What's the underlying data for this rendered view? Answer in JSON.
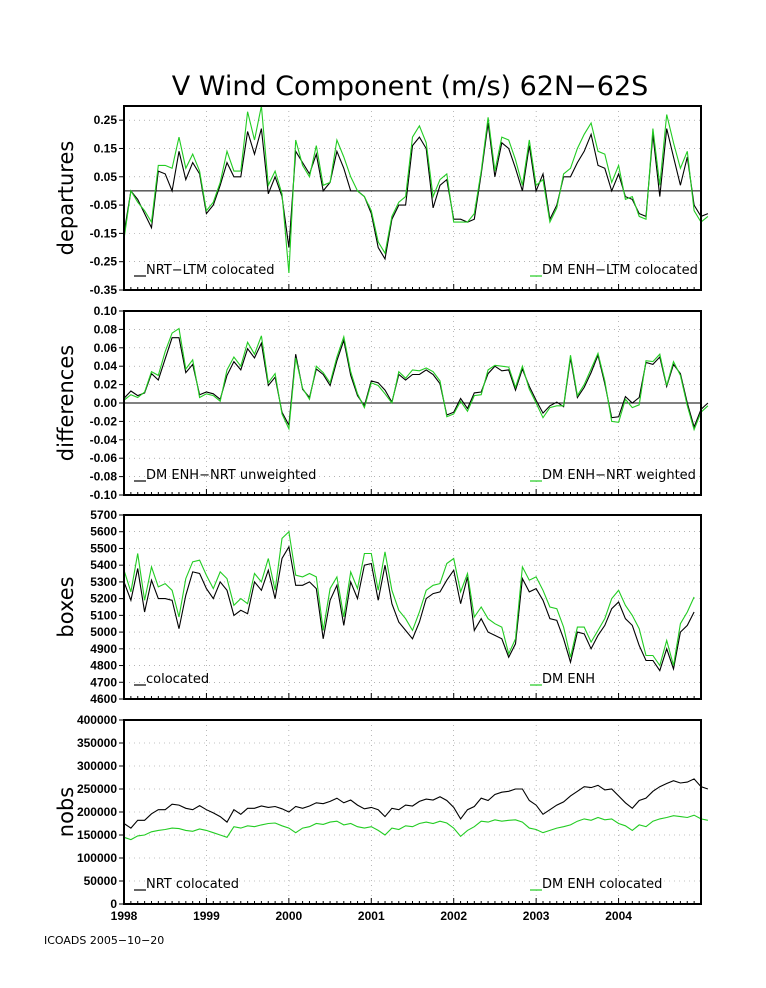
{
  "title": "V Wind Component (m/s) 62N−62S",
  "footer": "ICOADS 2005−10−20",
  "colors": {
    "black_series": "#000000",
    "green_series": "#22cc22",
    "grid": "#888888"
  },
  "chart_data": [
    {
      "type": "line",
      "ylabel": "departures",
      "ylim": [
        -0.35,
        0.3
      ],
      "yticks": [
        "0.25",
        "0.15",
        "0.05",
        "-0.05",
        "-0.15",
        "-0.25",
        "-0.35"
      ],
      "zero_line": true,
      "x_start": "1998-01",
      "x_end": "2004-11",
      "series": [
        {
          "name": "NRT−LTM colocated",
          "color": "#000000",
          "legend_pos": "bottom-left",
          "values": [
            -0.15,
            0.0,
            -0.03,
            -0.08,
            -0.13,
            0.07,
            0.06,
            0.0,
            0.14,
            0.04,
            0.1,
            0.06,
            -0.08,
            -0.05,
            0.02,
            0.1,
            0.05,
            0.05,
            0.21,
            0.13,
            0.22,
            -0.01,
            0.05,
            -0.02,
            -0.2,
            0.14,
            0.1,
            0.06,
            0.13,
            0.0,
            0.03,
            0.14,
            0.08,
            0.0,
            0.0,
            -0.02,
            -0.08,
            -0.2,
            -0.24,
            -0.1,
            -0.05,
            -0.05,
            0.16,
            0.19,
            0.15,
            -0.06,
            0.02,
            0.04,
            -0.1,
            -0.1,
            -0.11,
            -0.1,
            0.06,
            0.24,
            0.05,
            0.17,
            0.15,
            0.08,
            0.0,
            0.16,
            0.0,
            0.06,
            -0.1,
            -0.05,
            0.05,
            0.05,
            0.1,
            0.14,
            0.2,
            0.09,
            0.08,
            0.0,
            0.06,
            -0.02,
            -0.03,
            -0.08,
            -0.09,
            0.2,
            -0.02,
            0.22,
            0.12,
            0.02,
            0.12,
            -0.05,
            -0.09,
            -0.08
          ]
        },
        {
          "name": "DM ENH−LTM colocated",
          "color": "#22cc22",
          "legend_pos": "bottom-right",
          "values": [
            -0.17,
            0.0,
            -0.04,
            -0.07,
            -0.11,
            0.09,
            0.09,
            0.08,
            0.19,
            0.08,
            0.13,
            0.07,
            -0.07,
            -0.04,
            0.03,
            0.14,
            0.07,
            0.07,
            0.28,
            0.18,
            0.3,
            0.02,
            0.07,
            -0.01,
            -0.29,
            0.18,
            0.09,
            0.05,
            0.16,
            0.02,
            0.03,
            0.18,
            0.12,
            0.05,
            0.0,
            -0.02,
            -0.07,
            -0.18,
            -0.22,
            -0.09,
            -0.04,
            -0.02,
            0.19,
            0.23,
            0.17,
            -0.02,
            0.04,
            0.06,
            -0.11,
            -0.11,
            -0.11,
            -0.08,
            0.07,
            0.26,
            0.07,
            0.19,
            0.18,
            0.11,
            0.02,
            0.18,
            0.02,
            0.04,
            -0.11,
            -0.06,
            0.06,
            0.08,
            0.15,
            0.2,
            0.24,
            0.14,
            0.13,
            0.03,
            0.09,
            -0.03,
            -0.02,
            -0.09,
            -0.1,
            0.22,
            0.02,
            0.27,
            0.17,
            0.08,
            0.14,
            -0.07,
            -0.11,
            -0.09
          ]
        }
      ]
    },
    {
      "type": "line",
      "ylabel": "differences",
      "ylim": [
        -0.1,
        0.1
      ],
      "yticks": [
        "0.10",
        "0.08",
        "0.06",
        "0.04",
        "0.02",
        "0.00",
        "-0.02",
        "-0.04",
        "-0.06",
        "-0.08",
        "-0.10"
      ],
      "zero_line": true,
      "x_start": "1998-01",
      "x_end": "2004-11",
      "series": [
        {
          "name": "DM ENH−NRT unweighted",
          "color": "#000000",
          "legend_pos": "bottom-left",
          "values": [
            0.005,
            0.013,
            0.008,
            0.011,
            0.032,
            0.025,
            0.048,
            0.071,
            0.071,
            0.033,
            0.042,
            0.009,
            0.012,
            0.01,
            0.004,
            0.03,
            0.045,
            0.036,
            0.059,
            0.049,
            0.065,
            0.019,
            0.028,
            -0.01,
            -0.024,
            0.053,
            0.015,
            0.006,
            0.037,
            0.031,
            0.019,
            0.046,
            0.068,
            0.03,
            0.008,
            -0.003,
            0.024,
            0.022,
            0.014,
            0.001,
            0.031,
            0.025,
            0.031,
            0.031,
            0.036,
            0.031,
            0.021,
            -0.013,
            -0.01,
            0.005,
            -0.006,
            0.011,
            0.012,
            0.032,
            0.04,
            0.035,
            0.036,
            0.014,
            0.037,
            0.018,
            0.003,
            -0.011,
            -0.003,
            0.001,
            -0.004,
            0.049,
            0.006,
            0.017,
            0.033,
            0.052,
            0.021,
            -0.016,
            -0.015,
            0.007,
            0.0,
            0.006,
            0.044,
            0.042,
            0.05,
            0.018,
            0.042,
            0.032,
            0.0,
            -0.026,
            -0.007,
            0.0
          ]
        },
        {
          "name": "DM ENH−NRT weighted",
          "color": "#22cc22",
          "legend_pos": "bottom-right",
          "values": [
            0.003,
            0.009,
            0.006,
            0.012,
            0.034,
            0.03,
            0.056,
            0.076,
            0.081,
            0.037,
            0.047,
            0.006,
            0.01,
            0.008,
            0.002,
            0.036,
            0.05,
            0.04,
            0.066,
            0.053,
            0.073,
            0.022,
            0.032,
            -0.012,
            -0.028,
            0.049,
            0.016,
            0.004,
            0.04,
            0.033,
            0.022,
            0.05,
            0.072,
            0.034,
            0.01,
            -0.005,
            0.022,
            0.019,
            0.01,
            0.0,
            0.034,
            0.027,
            0.036,
            0.035,
            0.038,
            0.034,
            0.024,
            -0.015,
            -0.012,
            0.002,
            -0.009,
            0.008,
            0.009,
            0.036,
            0.041,
            0.04,
            0.039,
            0.017,
            0.04,
            0.015,
            0.0,
            -0.016,
            -0.005,
            -0.003,
            -0.003,
            0.052,
            0.008,
            0.02,
            0.037,
            0.054,
            0.024,
            -0.02,
            -0.021,
            0.004,
            -0.005,
            -0.002,
            0.046,
            0.045,
            0.053,
            0.019,
            0.045,
            0.03,
            -0.003,
            -0.029,
            -0.01,
            -0.003
          ]
        }
      ]
    },
    {
      "type": "line",
      "ylabel": "boxes",
      "ylim": [
        4600,
        5700
      ],
      "yticks": [
        "5700",
        "5600",
        "5500",
        "5400",
        "5300",
        "5200",
        "5100",
        "5000",
        "4900",
        "4800",
        "4700",
        "4600"
      ],
      "zero_line": false,
      "x_start": "1998-01",
      "x_end": "2004-11",
      "series": [
        {
          "name": "colocated",
          "color": "#000000",
          "legend_pos": "bottom-left",
          "values": [
            5300,
            5190,
            5380,
            5120,
            5310,
            5200,
            5200,
            5190,
            5020,
            5220,
            5360,
            5350,
            5260,
            5200,
            5300,
            5250,
            5100,
            5130,
            5110,
            5300,
            5250,
            5370,
            5200,
            5440,
            5510,
            5280,
            5280,
            5300,
            5260,
            4960,
            5190,
            5280,
            5040,
            5300,
            5200,
            5400,
            5410,
            5190,
            5400,
            5170,
            5060,
            5010,
            4960,
            5060,
            5200,
            5230,
            5240,
            5310,
            5370,
            5170,
            5330,
            5010,
            5080,
            5000,
            4980,
            4960,
            4850,
            4930,
            5320,
            5240,
            5260,
            5190,
            5080,
            5070,
            4960,
            4820,
            5000,
            4990,
            4900,
            4980,
            5040,
            5140,
            5180,
            5080,
            5040,
            4920,
            4830,
            4830,
            4770,
            4900,
            4780,
            5000,
            5040,
            5120
          ]
        },
        {
          "name": "DM ENH",
          "color": "#22cc22",
          "legend_pos": "bottom-right",
          "values": [
            5370,
            5240,
            5470,
            5190,
            5390,
            5270,
            5290,
            5250,
            5090,
            5320,
            5420,
            5430,
            5340,
            5260,
            5360,
            5320,
            5160,
            5200,
            5170,
            5350,
            5300,
            5440,
            5250,
            5560,
            5600,
            5340,
            5330,
            5350,
            5330,
            5010,
            5260,
            5330,
            5090,
            5360,
            5260,
            5470,
            5470,
            5250,
            5480,
            5250,
            5130,
            5080,
            5010,
            5120,
            5250,
            5280,
            5290,
            5410,
            5440,
            5240,
            5350,
            5090,
            5150,
            5080,
            5050,
            5030,
            4870,
            4960,
            5390,
            5310,
            5330,
            5250,
            5150,
            5140,
            5030,
            4850,
            5030,
            5030,
            4940,
            5010,
            5080,
            5200,
            5250,
            5160,
            5100,
            5020,
            4860,
            4860,
            4800,
            4950,
            4800,
            5050,
            5120,
            5210
          ]
        }
      ]
    },
    {
      "type": "line",
      "ylabel": "nobs",
      "ylim": [
        0,
        400000
      ],
      "yticks": [
        "400000",
        "350000",
        "300000",
        "250000",
        "200000",
        "150000",
        "100000",
        "50000",
        "0"
      ],
      "zero_line": false,
      "x_start": "1998-01",
      "x_end": "2004-11",
      "x_tick_labels": [
        "1998",
        "1999",
        "2000",
        "2001",
        "2002",
        "2003",
        "2004"
      ],
      "series": [
        {
          "name": "NRT colocated",
          "color": "#000000",
          "legend_pos": "bottom-left",
          "values": [
            175000,
            165000,
            182000,
            182000,
            196000,
            205000,
            205000,
            217000,
            215000,
            208000,
            205000,
            214000,
            205000,
            198000,
            190000,
            178000,
            205000,
            195000,
            208000,
            208000,
            213000,
            210000,
            212000,
            207000,
            200000,
            212000,
            208000,
            213000,
            220000,
            218000,
            223000,
            230000,
            220000,
            226000,
            215000,
            207000,
            210000,
            205000,
            190000,
            208000,
            205000,
            215000,
            213000,
            223000,
            228000,
            226000,
            233000,
            225000,
            210000,
            185000,
            205000,
            212000,
            230000,
            225000,
            238000,
            243000,
            245000,
            250000,
            250000,
            225000,
            215000,
            195000,
            205000,
            215000,
            222000,
            235000,
            245000,
            255000,
            253000,
            258000,
            248000,
            250000,
            235000,
            220000,
            208000,
            225000,
            230000,
            245000,
            255000,
            262000,
            268000,
            263000,
            265000,
            272000,
            255000,
            250000
          ]
        },
        {
          "name": "DM ENH colocated",
          "color": "#22cc22",
          "legend_pos": "bottom-right",
          "values": [
            145000,
            140000,
            148000,
            150000,
            157000,
            160000,
            162000,
            165000,
            164000,
            160000,
            158000,
            163000,
            160000,
            155000,
            150000,
            145000,
            168000,
            165000,
            170000,
            168000,
            172000,
            175000,
            176000,
            170000,
            165000,
            155000,
            165000,
            168000,
            175000,
            173000,
            178000,
            180000,
            172000,
            175000,
            168000,
            165000,
            168000,
            160000,
            150000,
            165000,
            162000,
            170000,
            168000,
            175000,
            178000,
            175000,
            180000,
            176000,
            165000,
            147000,
            160000,
            168000,
            180000,
            178000,
            183000,
            180000,
            182000,
            183000,
            178000,
            165000,
            162000,
            155000,
            160000,
            165000,
            168000,
            172000,
            180000,
            185000,
            182000,
            188000,
            183000,
            185000,
            175000,
            170000,
            160000,
            172000,
            168000,
            180000,
            185000,
            188000,
            192000,
            190000,
            188000,
            193000,
            185000,
            182000
          ]
        }
      ]
    }
  ]
}
